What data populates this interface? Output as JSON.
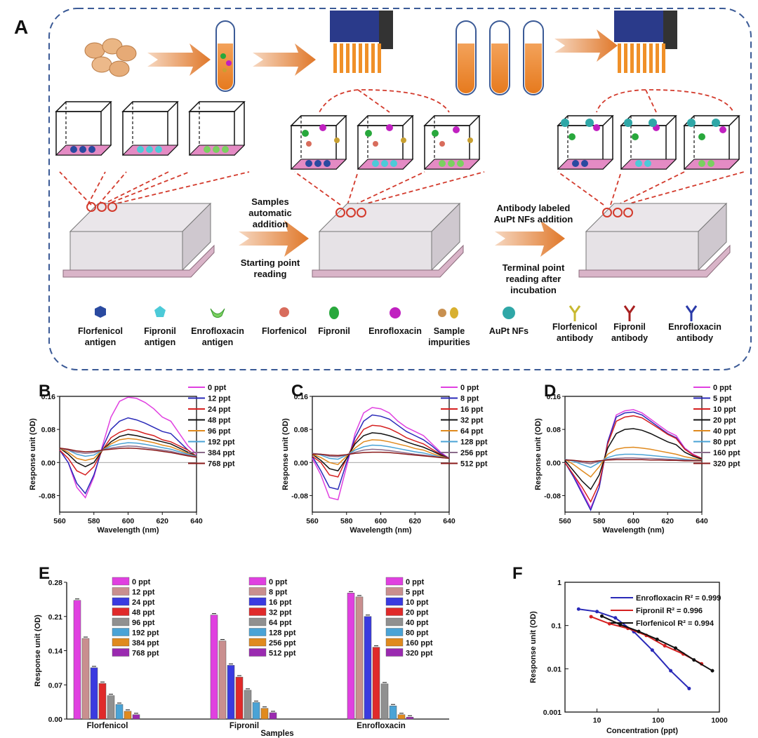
{
  "panelA": {
    "letter": "A",
    "step1": [
      "Samples",
      "automatic",
      "addition"
    ],
    "step1b": [
      "Starting point",
      "reading"
    ],
    "step2": [
      "Antibody labeled",
      "AuPt NFs addition"
    ],
    "step2b": [
      "Terminal point",
      "reading after",
      "incubation"
    ],
    "legend": [
      {
        "icon": "hexagon-antigen-icon",
        "lines": [
          "Florfenicol",
          "antigen"
        ]
      },
      {
        "icon": "pentagon-antigen-icon",
        "lines": [
          "Fipronil",
          "antigen"
        ]
      },
      {
        "icon": "cup-antigen-icon",
        "lines": [
          "Enrofloxacin",
          "antigen"
        ]
      },
      {
        "icon": "florfenicol-molecule-icon",
        "lines": [
          "Florfenicol"
        ]
      },
      {
        "icon": "fipronil-molecule-icon",
        "lines": [
          "Fipronil"
        ]
      },
      {
        "icon": "enrofloxacin-molecule-icon",
        "lines": [
          "Enrofloxacin"
        ]
      },
      {
        "icon": "sample-impurities-icon",
        "lines": [
          "Sample",
          "impurities"
        ]
      },
      {
        "icon": "aupt-nf-icon",
        "lines": [
          "AuPt NFs"
        ]
      },
      {
        "icon": "florfenicol-antibody-icon",
        "lines": [
          "Florfenicol",
          "antibody"
        ]
      },
      {
        "icon": "fipronil-antibody-icon",
        "lines": [
          "Fipronil",
          "antibody"
        ]
      },
      {
        "icon": "enrofloxacin-antibody-icon",
        "lines": [
          "Enrofloxacin",
          "antibody"
        ]
      }
    ],
    "colors": {
      "border": "#3b5a96",
      "arrow": "#e0782a",
      "dashed_red": "#d33a2c",
      "plate": "#d9b4c8",
      "antigen_floor": "#e48bc4"
    }
  },
  "chart_data": [
    {
      "panel": "B",
      "type": "line",
      "xlabel": "Wavelength (nm)",
      "ylabel": "Response unit (OD)",
      "xlim": [
        560,
        640
      ],
      "ylim": [
        -0.12,
        0.16
      ],
      "xticks": [
        "560",
        "580",
        "600",
        "620",
        "640"
      ],
      "yticks": [
        "-0.08",
        "0.00",
        "0.08",
        "0.16"
      ],
      "x": [
        560,
        565,
        570,
        575,
        580,
        585,
        590,
        595,
        600,
        605,
        610,
        615,
        620,
        625,
        630,
        635,
        640
      ],
      "series": [
        {
          "name": "0 ppt",
          "color": "#e040e0",
          "values": [
            0.03,
            0.0,
            -0.06,
            -0.085,
            -0.035,
            0.04,
            0.11,
            0.148,
            0.158,
            0.155,
            0.145,
            0.13,
            0.11,
            0.1,
            0.07,
            0.04,
            0.02
          ]
        },
        {
          "name": "12 ppt",
          "color": "#2a2ab8",
          "values": [
            0.03,
            0.0,
            -0.05,
            -0.075,
            -0.03,
            0.035,
            0.08,
            0.1,
            0.108,
            0.103,
            0.095,
            0.085,
            0.075,
            0.07,
            0.05,
            0.03,
            0.015
          ]
        },
        {
          "name": "24 ppt",
          "color": "#d52020",
          "values": [
            0.03,
            0.01,
            -0.02,
            -0.03,
            -0.01,
            0.03,
            0.06,
            0.073,
            0.08,
            0.077,
            0.07,
            0.065,
            0.055,
            0.05,
            0.04,
            0.03,
            0.015
          ]
        },
        {
          "name": "48 ppt",
          "color": "#111111",
          "values": [
            0.035,
            0.02,
            0.0,
            -0.01,
            0.0,
            0.03,
            0.05,
            0.063,
            0.068,
            0.065,
            0.06,
            0.055,
            0.05,
            0.045,
            0.035,
            0.025,
            0.015
          ]
        },
        {
          "name": "96 ppt",
          "color": "#e08a1e",
          "values": [
            0.035,
            0.025,
            0.01,
            0.005,
            0.01,
            0.03,
            0.045,
            0.055,
            0.058,
            0.056,
            0.052,
            0.048,
            0.042,
            0.038,
            0.03,
            0.022,
            0.015
          ]
        },
        {
          "name": "192 ppt",
          "color": "#4aa3d6",
          "values": [
            0.035,
            0.03,
            0.02,
            0.015,
            0.018,
            0.03,
            0.04,
            0.045,
            0.048,
            0.047,
            0.044,
            0.04,
            0.036,
            0.032,
            0.026,
            0.02,
            0.015
          ]
        },
        {
          "name": "384 ppt",
          "color": "#8a6b8a",
          "values": [
            0.035,
            0.03,
            0.025,
            0.022,
            0.024,
            0.03,
            0.035,
            0.038,
            0.04,
            0.039,
            0.036,
            0.033,
            0.03,
            0.027,
            0.022,
            0.018,
            0.014
          ]
        },
        {
          "name": "768 ppt",
          "color": "#8a1a1a",
          "values": [
            0.035,
            0.032,
            0.028,
            0.026,
            0.027,
            0.03,
            0.032,
            0.034,
            0.035,
            0.034,
            0.032,
            0.03,
            0.027,
            0.024,
            0.02,
            0.016,
            0.013
          ]
        }
      ]
    },
    {
      "panel": "C",
      "type": "line",
      "xlabel": "Wavelength (nm)",
      "ylabel": "Response unit (OD)",
      "xlim": [
        560,
        640
      ],
      "ylim": [
        -0.12,
        0.16
      ],
      "xticks": [
        "560",
        "580",
        "600",
        "620",
        "640"
      ],
      "yticks": [
        "-0.08",
        "0.00",
        "0.08",
        "0.16"
      ],
      "x": [
        560,
        565,
        570,
        575,
        580,
        585,
        590,
        595,
        600,
        605,
        610,
        615,
        620,
        625,
        630,
        635,
        640
      ],
      "series": [
        {
          "name": "0 ppt",
          "color": "#e040e0",
          "values": [
            0.01,
            -0.03,
            -0.085,
            -0.09,
            -0.01,
            0.07,
            0.12,
            0.133,
            0.13,
            0.12,
            0.1,
            0.085,
            0.075,
            0.065,
            0.045,
            0.025,
            0.01
          ]
        },
        {
          "name": "8 ppt",
          "color": "#2a2ab8",
          "values": [
            0.015,
            -0.02,
            -0.06,
            -0.065,
            0.0,
            0.06,
            0.1,
            0.115,
            0.112,
            0.105,
            0.09,
            0.075,
            0.065,
            0.055,
            0.04,
            0.022,
            0.01
          ]
        },
        {
          "name": "16 ppt",
          "color": "#d52020",
          "values": [
            0.015,
            0.0,
            -0.03,
            -0.035,
            0.01,
            0.05,
            0.08,
            0.09,
            0.088,
            0.082,
            0.072,
            0.06,
            0.052,
            0.045,
            0.032,
            0.02,
            0.01
          ]
        },
        {
          "name": "32 ppt",
          "color": "#111111",
          "values": [
            0.02,
            0.005,
            -0.015,
            -0.02,
            0.01,
            0.045,
            0.065,
            0.072,
            0.07,
            0.065,
            0.058,
            0.05,
            0.043,
            0.037,
            0.028,
            0.018,
            0.01
          ]
        },
        {
          "name": "64 ppt",
          "color": "#e08a1e",
          "values": [
            0.02,
            0.012,
            0.0,
            -0.005,
            0.015,
            0.035,
            0.05,
            0.055,
            0.054,
            0.05,
            0.045,
            0.04,
            0.034,
            0.03,
            0.022,
            0.015,
            0.01
          ]
        },
        {
          "name": "128 ppt",
          "color": "#4aa3d6",
          "values": [
            0.022,
            0.018,
            0.01,
            0.008,
            0.018,
            0.03,
            0.038,
            0.042,
            0.041,
            0.038,
            0.034,
            0.03,
            0.026,
            0.023,
            0.018,
            0.013,
            0.01
          ]
        },
        {
          "name": "256 ppt",
          "color": "#8a6b8a",
          "values": [
            0.022,
            0.02,
            0.015,
            0.014,
            0.019,
            0.025,
            0.03,
            0.032,
            0.031,
            0.029,
            0.026,
            0.023,
            0.02,
            0.018,
            0.015,
            0.012,
            0.01
          ]
        },
        {
          "name": "512 ppt",
          "color": "#8a1a1a",
          "values": [
            0.02,
            0.02,
            0.018,
            0.017,
            0.019,
            0.022,
            0.024,
            0.025,
            0.025,
            0.024,
            0.022,
            0.02,
            0.018,
            0.016,
            0.014,
            0.012,
            0.01
          ]
        }
      ]
    },
    {
      "panel": "D",
      "type": "line",
      "xlabel": "Wavelength (nm)",
      "ylabel": "Response unit (OD)",
      "xlim": [
        560,
        640
      ],
      "ylim": [
        -0.12,
        0.16
      ],
      "xticks": [
        "560",
        "580",
        "600",
        "620",
        "640"
      ],
      "yticks": [
        "-0.08",
        "0.00",
        "0.08",
        "0.16"
      ],
      "x": [
        560,
        565,
        570,
        575,
        580,
        585,
        590,
        595,
        600,
        605,
        610,
        615,
        620,
        625,
        630,
        635,
        640
      ],
      "series": [
        {
          "name": "0 ppt",
          "color": "#e040e0",
          "values": [
            0.0,
            -0.03,
            -0.07,
            -0.11,
            -0.06,
            0.05,
            0.115,
            0.125,
            0.128,
            0.12,
            0.105,
            0.09,
            0.075,
            0.065,
            0.035,
            0.02,
            0.01
          ]
        },
        {
          "name": "5 ppt",
          "color": "#2a2ab8",
          "values": [
            0.0,
            -0.035,
            -0.075,
            -0.115,
            -0.06,
            0.05,
            0.11,
            0.12,
            0.122,
            0.115,
            0.1,
            0.085,
            0.07,
            0.06,
            0.033,
            0.018,
            0.01
          ]
        },
        {
          "name": "10 ppt",
          "color": "#d52020",
          "values": [
            0.0,
            -0.03,
            -0.06,
            -0.095,
            -0.05,
            0.045,
            0.1,
            0.11,
            0.113,
            0.108,
            0.095,
            0.082,
            0.068,
            0.058,
            0.032,
            0.018,
            0.01
          ]
        },
        {
          "name": "20 ppt",
          "color": "#111111",
          "values": [
            0.005,
            -0.02,
            -0.045,
            -0.065,
            -0.03,
            0.035,
            0.07,
            0.08,
            0.082,
            0.078,
            0.07,
            0.06,
            0.05,
            0.043,
            0.025,
            0.015,
            0.008
          ]
        },
        {
          "name": "40 ppt",
          "color": "#e08a1e",
          "values": [
            0.008,
            -0.005,
            -0.02,
            -0.035,
            -0.01,
            0.02,
            0.032,
            0.036,
            0.037,
            0.035,
            0.032,
            0.028,
            0.024,
            0.02,
            0.014,
            0.01,
            0.006
          ]
        },
        {
          "name": "80 ppt",
          "color": "#4aa3d6",
          "values": [
            0.008,
            0.003,
            -0.005,
            -0.012,
            0.0,
            0.012,
            0.018,
            0.02,
            0.02,
            0.019,
            0.017,
            0.015,
            0.013,
            0.011,
            0.008,
            0.006,
            0.005
          ]
        },
        {
          "name": "160 ppt",
          "color": "#8a6b8a",
          "values": [
            0.007,
            0.005,
            0.0,
            -0.003,
            0.003,
            0.008,
            0.01,
            0.011,
            0.011,
            0.01,
            0.01,
            0.009,
            0.008,
            0.007,
            0.006,
            0.005,
            0.004
          ]
        },
        {
          "name": "320 ppt",
          "color": "#8a1a1a",
          "values": [
            0.006,
            0.005,
            0.003,
            0.002,
            0.004,
            0.006,
            0.007,
            0.007,
            0.007,
            0.007,
            0.006,
            0.006,
            0.005,
            0.005,
            0.004,
            0.004,
            0.004
          ]
        }
      ]
    },
    {
      "panel": "E",
      "type": "bar",
      "xlabel": "Samples",
      "ylabel": "Response unit (OD)",
      "ylim": [
        0,
        0.28
      ],
      "yticks": [
        "0.00",
        "0.07",
        "0.14",
        "0.21",
        "0.28"
      ],
      "bar_colors": [
        "#e040e0",
        "#c98f8f",
        "#3a3ae0",
        "#e02a2a",
        "#909090",
        "#4aa3d6",
        "#e08a1e",
        "#9a2ab0"
      ],
      "groups": [
        {
          "name": "Florfenicol",
          "labels": [
            "0 ppt",
            "12 ppt",
            "24 ppt",
            "48 ppt",
            "96 ppt",
            "192 ppt",
            "384 ppt",
            "768 ppt"
          ],
          "values": [
            0.243,
            0.165,
            0.105,
            0.073,
            0.048,
            0.03,
            0.016,
            0.009
          ]
        },
        {
          "name": "Fipronil",
          "labels": [
            "0 ppt",
            "8 ppt",
            "16 ppt",
            "32 ppt",
            "64 ppt",
            "128 ppt",
            "256 ppt",
            "512 ppt"
          ],
          "values": [
            0.213,
            0.16,
            0.11,
            0.086,
            0.059,
            0.034,
            0.022,
            0.013
          ]
        },
        {
          "name": "Enrofloxacin",
          "labels": [
            "0 ppt",
            "5 ppt",
            "10 ppt",
            "20 ppt",
            "40 ppt",
            "80 ppt",
            "160 ppt",
            "320 ppt"
          ],
          "values": [
            0.258,
            0.25,
            0.21,
            0.147,
            0.072,
            0.027,
            0.009,
            0.004
          ]
        }
      ]
    },
    {
      "panel": "F",
      "type": "scatter",
      "xlabel": "Concentration (ppt)",
      "ylabel": "Response unit (OD)",
      "xscale": "log",
      "yscale": "log",
      "xlim": [
        3,
        1000
      ],
      "ylim": [
        0.001,
        1
      ],
      "xticks": [
        "10",
        "100",
        "1000"
      ],
      "yticks": [
        "0.001",
        "0.01",
        "0.1",
        "1"
      ],
      "series": [
        {
          "name": "Enrofloxacin",
          "r2": "R² = 0.999",
          "color": "#2a2ab8",
          "x": [
            5,
            10,
            20,
            40,
            80,
            160,
            320
          ],
          "y": [
            0.24,
            0.21,
            0.15,
            0.072,
            0.027,
            0.009,
            0.0035
          ]
        },
        {
          "name": "Fipronil",
          "r2": "R² = 0.996",
          "color": "#d52020",
          "x": [
            8,
            16,
            32,
            64,
            128,
            256,
            512
          ],
          "y": [
            0.16,
            0.11,
            0.086,
            0.059,
            0.034,
            0.022,
            0.013
          ]
        },
        {
          "name": "Florfenicol",
          "r2": "R² = 0.994",
          "color": "#111111",
          "x": [
            12,
            24,
            48,
            96,
            192,
            384,
            768
          ],
          "y": [
            0.165,
            0.105,
            0.073,
            0.048,
            0.03,
            0.016,
            0.009
          ]
        }
      ]
    }
  ]
}
